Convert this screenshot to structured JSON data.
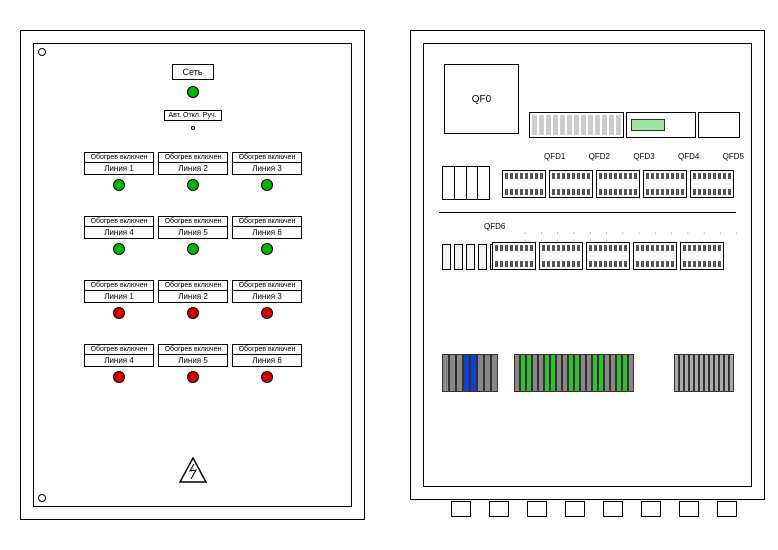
{
  "left": {
    "network_label": "Сеть",
    "mode_label": "Авт. Откл. Руч.",
    "rows": [
      {
        "color": "green",
        "cells": [
          {
            "top": "Обогрев включен",
            "bottom": "Линия 1"
          },
          {
            "top": "Обогрев включен",
            "bottom": "Линия 2"
          },
          {
            "top": "Обогрев включен",
            "bottom": "Линия 3"
          }
        ]
      },
      {
        "color": "green",
        "cells": [
          {
            "top": "Обогрев включен",
            "bottom": "Линия 4"
          },
          {
            "top": "Обогрев включен",
            "bottom": "Линия 5"
          },
          {
            "top": "Обогрев включен",
            "bottom": "Линия 6"
          }
        ]
      },
      {
        "color": "red",
        "cells": [
          {
            "top": "Обогрев включен",
            "bottom": "Линия 1"
          },
          {
            "top": "Обогрев включен",
            "bottom": "Линия 2"
          },
          {
            "top": "Обогрев включен",
            "bottom": "Линия 3"
          }
        ]
      },
      {
        "color": "red",
        "cells": [
          {
            "top": "Обогрев включен",
            "bottom": "Линия 4"
          },
          {
            "top": "Обогрев включен",
            "bottom": "Линия 5"
          },
          {
            "top": "Обогрев включен",
            "bottom": "Линия 6"
          }
        ]
      }
    ],
    "led_green": "#00b400",
    "led_red": "#d40000"
  },
  "right": {
    "qf0": "QF0",
    "qfd_top": [
      "QFD1",
      "QFD2",
      "QFD3",
      "QFD4",
      "QFD5"
    ],
    "qfd_mid": "QFD6",
    "terminal_colors_left": [
      "#888888",
      "#888888",
      "#888888",
      "#1040d0",
      "#1040d0",
      "#888888",
      "#888888",
      "#888888"
    ],
    "terminal_colors_mid": [
      "#888",
      "#30c030",
      "#30c030",
      "#888",
      "#888",
      "#30c030",
      "#30c030",
      "#888",
      "#888",
      "#30c030",
      "#30c030",
      "#888",
      "#888",
      "#30c030",
      "#30c030",
      "#888",
      "#888",
      "#30c030",
      "#30c030",
      "#888"
    ],
    "terminal_colors_right": [
      "#aaa",
      "#aaa",
      "#aaa",
      "#aaa",
      "#aaa",
      "#aaa",
      "#aaa",
      "#aaa",
      "#aaa",
      "#aaa",
      "#aaa",
      "#aaa"
    ],
    "gland_count": 8
  }
}
